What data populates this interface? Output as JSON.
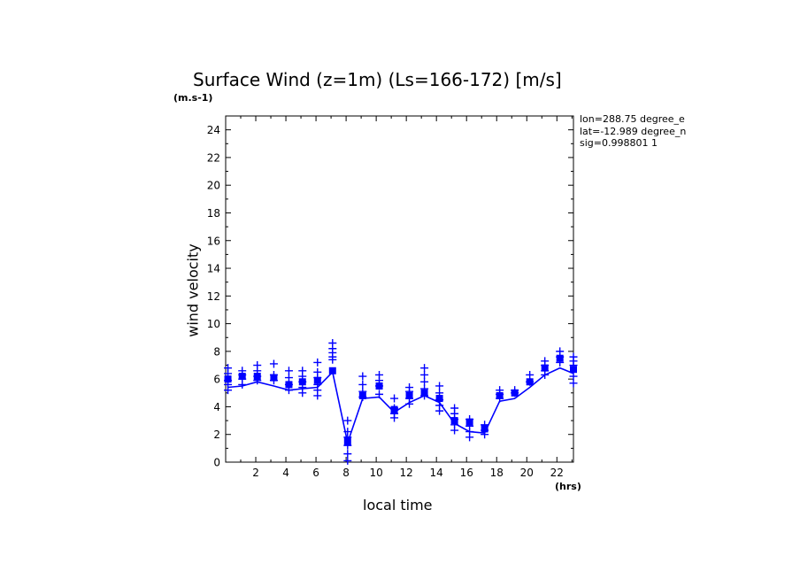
{
  "chart_data": {
    "type": "line",
    "title": "Surface Wind (z=1m) (Ls=166-172) [m/s]",
    "ylabel": "wind velocity",
    "y_unit": "(m.s-1)",
    "xlabel": "local time",
    "x_unit": "(hrs)",
    "xlim": [
      0,
      23.1
    ],
    "ylim": [
      0,
      25
    ],
    "x_ticks": [
      2,
      4,
      6,
      8,
      10,
      12,
      14,
      16,
      18,
      20,
      22
    ],
    "y_ticks": [
      0,
      2,
      4,
      6,
      8,
      10,
      12,
      14,
      16,
      18,
      20,
      22,
      24
    ],
    "info": [
      "lon=288.75 degree_e",
      "lat=-12.989 degree_n",
      "sig=0.998801 1"
    ],
    "color": "#0000ff",
    "series": [
      {
        "type": "line",
        "x": [
          0.15,
          1.1,
          2.1,
          3.2,
          4.2,
          5.1,
          6.1,
          7.1,
          8.1,
          9.1,
          10.2,
          11.2,
          12.2,
          13.2,
          14.2,
          15.2,
          16.2,
          17.2,
          18.2,
          19.2,
          20.2,
          21.2,
          22.2,
          23.1
        ],
        "y": [
          5.4,
          5.5,
          5.8,
          5.5,
          5.2,
          5.3,
          5.4,
          6.5,
          1.4,
          4.6,
          4.7,
          3.6,
          4.3,
          4.8,
          4.3,
          2.8,
          2.2,
          2.1,
          4.4,
          4.6,
          5.4,
          6.3,
          6.8,
          6.4
        ]
      },
      {
        "type": "mean_marker",
        "x": [
          0.15,
          1.1,
          2.1,
          3.2,
          4.2,
          5.1,
          6.1,
          7.1,
          8.1,
          9.1,
          10.2,
          11.2,
          12.2,
          13.2,
          14.2,
          15.2,
          16.2,
          17.2,
          18.2,
          19.2,
          20.2,
          21.2,
          22.2,
          23.1
        ],
        "y": [
          6.0,
          6.2,
          6.2,
          6.1,
          5.6,
          5.8,
          5.9,
          6.6,
          1.5,
          4.8,
          5.5,
          3.8,
          4.8,
          5.0,
          4.6,
          3.0,
          2.9,
          2.4,
          4.8,
          5.0,
          5.8,
          6.8,
          7.5,
          6.7
        ]
      },
      {
        "type": "spread_markers",
        "points": [
          [
            0.15,
            6.8
          ],
          [
            0.15,
            6.4
          ],
          [
            0.15,
            5.9
          ],
          [
            0.15,
            5.6
          ],
          [
            0.15,
            5.2
          ],
          [
            1.1,
            6.6
          ],
          [
            1.1,
            6.3
          ],
          [
            1.1,
            6.0
          ],
          [
            1.1,
            5.6
          ],
          [
            2.1,
            7.0
          ],
          [
            2.1,
            6.6
          ],
          [
            2.1,
            6.2
          ],
          [
            2.1,
            5.9
          ],
          [
            3.2,
            7.1
          ],
          [
            3.2,
            6.3
          ],
          [
            3.2,
            5.9
          ],
          [
            4.2,
            6.6
          ],
          [
            4.2,
            6.1
          ],
          [
            4.2,
            5.6
          ],
          [
            4.2,
            5.2
          ],
          [
            5.1,
            6.6
          ],
          [
            5.1,
            6.2
          ],
          [
            5.1,
            5.8
          ],
          [
            5.1,
            5.4
          ],
          [
            5.1,
            5.0
          ],
          [
            6.1,
            7.2
          ],
          [
            6.1,
            6.5
          ],
          [
            6.1,
            6.1
          ],
          [
            6.1,
            5.6
          ],
          [
            6.1,
            5.2
          ],
          [
            6.1,
            4.8
          ],
          [
            7.1,
            8.6
          ],
          [
            7.1,
            8.2
          ],
          [
            7.1,
            7.9
          ],
          [
            7.1,
            7.6
          ],
          [
            7.1,
            7.4
          ],
          [
            8.1,
            3.0
          ],
          [
            8.1,
            2.2
          ],
          [
            8.1,
            1.8
          ],
          [
            8.1,
            1.2
          ],
          [
            8.1,
            0.6
          ],
          [
            8.1,
            0.1
          ],
          [
            9.1,
            6.2
          ],
          [
            9.1,
            5.6
          ],
          [
            9.1,
            5.1
          ],
          [
            9.1,
            4.7
          ],
          [
            10.2,
            6.3
          ],
          [
            10.2,
            5.9
          ],
          [
            10.2,
            5.5
          ],
          [
            10.2,
            4.9
          ],
          [
            11.2,
            4.6
          ],
          [
            11.2,
            3.9
          ],
          [
            11.2,
            3.5
          ],
          [
            11.2,
            3.2
          ],
          [
            12.2,
            5.4
          ],
          [
            12.2,
            5.1
          ],
          [
            12.2,
            4.6
          ],
          [
            12.2,
            4.2
          ],
          [
            13.2,
            6.8
          ],
          [
            13.2,
            6.3
          ],
          [
            13.2,
            5.8
          ],
          [
            13.2,
            5.3
          ],
          [
            13.2,
            4.8
          ],
          [
            14.2,
            5.5
          ],
          [
            14.2,
            5.0
          ],
          [
            14.2,
            4.5
          ],
          [
            14.2,
            4.1
          ],
          [
            14.2,
            3.7
          ],
          [
            15.2,
            3.9
          ],
          [
            15.2,
            3.5
          ],
          [
            15.2,
            3.1
          ],
          [
            15.2,
            2.7
          ],
          [
            15.2,
            2.3
          ],
          [
            16.2,
            3.1
          ],
          [
            16.2,
            2.6
          ],
          [
            16.2,
            2.2
          ],
          [
            16.2,
            1.8
          ],
          [
            17.2,
            2.7
          ],
          [
            17.2,
            2.3
          ],
          [
            17.2,
            2.0
          ],
          [
            18.2,
            5.2
          ],
          [
            18.2,
            4.9
          ],
          [
            18.2,
            4.6
          ],
          [
            19.2,
            5.2
          ],
          [
            19.2,
            5.0
          ],
          [
            20.2,
            6.3
          ],
          [
            20.2,
            5.8
          ],
          [
            21.2,
            7.3
          ],
          [
            21.2,
            7.0
          ],
          [
            21.2,
            6.6
          ],
          [
            21.2,
            6.3
          ],
          [
            22.2,
            8.0
          ],
          [
            22.2,
            7.6
          ],
          [
            22.2,
            7.2
          ],
          [
            23.1,
            7.6
          ],
          [
            23.1,
            7.3
          ],
          [
            23.1,
            7.0
          ],
          [
            23.1,
            6.2
          ],
          [
            23.1,
            5.7
          ]
        ]
      }
    ]
  }
}
